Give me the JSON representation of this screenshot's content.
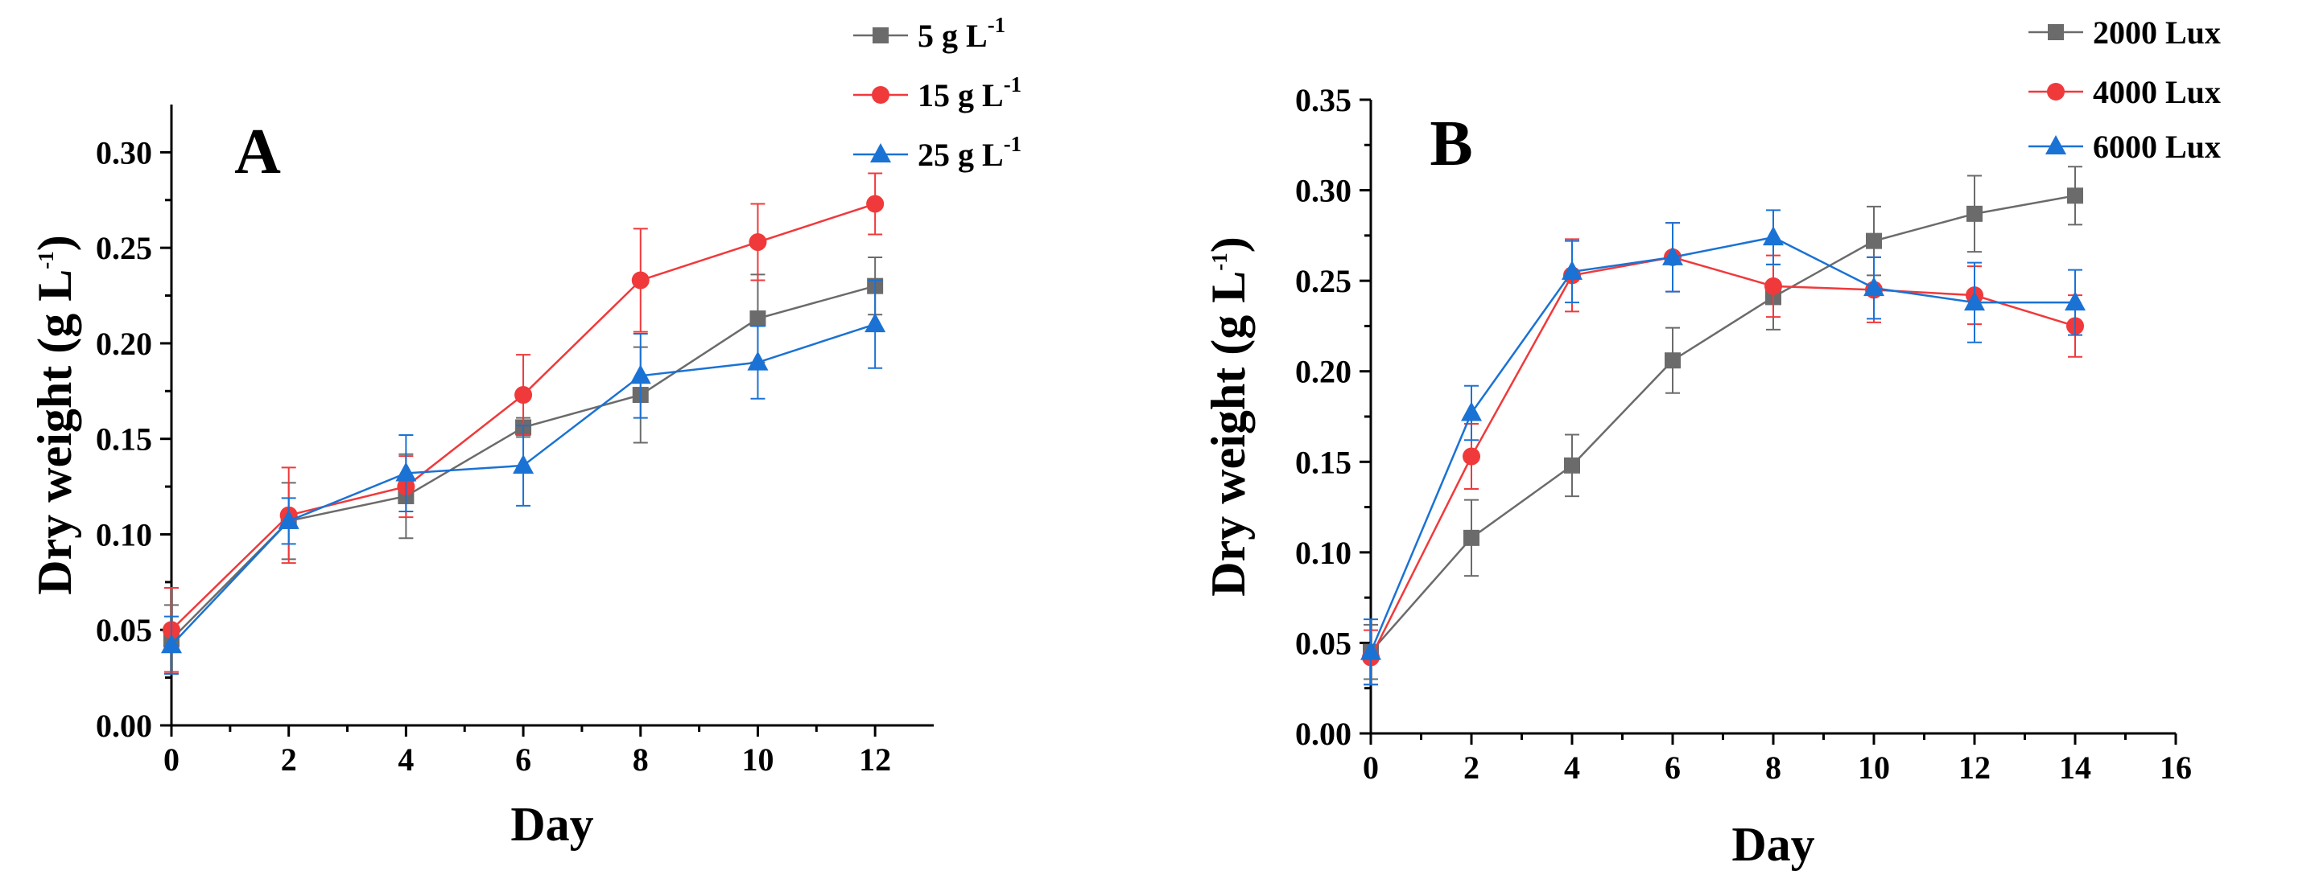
{
  "chart_data": [
    {
      "type": "line",
      "panel_label": "A",
      "xlabel": "Day",
      "ylabel": {
        "base": "Dry weight (g L",
        "sup": "-1",
        "close": ")"
      },
      "xlim": [
        0,
        13
      ],
      "ylim": [
        0,
        0.325
      ],
      "xticks": [
        0,
        2,
        4,
        6,
        8,
        10,
        12
      ],
      "yticks": [
        0.0,
        0.05,
        0.1,
        0.15,
        0.2,
        0.25,
        0.3
      ],
      "x": [
        0,
        2,
        4,
        6,
        8,
        10,
        12
      ],
      "legend_position": "top-right",
      "series": [
        {
          "name": "5 g L",
          "name_sup": "-1",
          "color": "#6b6b6b",
          "marker": "square",
          "values": [
            0.045,
            0.107,
            0.12,
            0.156,
            0.173,
            0.213,
            0.23
          ],
          "errors": [
            0.018,
            0.02,
            0.022,
            0.005,
            0.025,
            0.023,
            0.015
          ]
        },
        {
          "name": "15 g L",
          "name_sup": "-1",
          "color": "#f0393b",
          "marker": "circle",
          "values": [
            0.05,
            0.11,
            0.125,
            0.173,
            0.233,
            0.253,
            0.273
          ],
          "errors": [
            0.022,
            0.025,
            0.016,
            0.021,
            0.027,
            0.02,
            0.016
          ]
        },
        {
          "name": "25 g L",
          "name_sup": "-1",
          "color": "#1a72d4",
          "marker": "triangle",
          "values": [
            0.042,
            0.107,
            0.132,
            0.136,
            0.183,
            0.19,
            0.21
          ],
          "errors": [
            0.015,
            0.012,
            0.02,
            0.021,
            0.022,
            0.019,
            0.023
          ]
        }
      ]
    },
    {
      "type": "line",
      "panel_label": "B",
      "xlabel": "Day",
      "ylabel": {
        "base": "Dry weight (g L",
        "sup": "-1",
        "close": ")"
      },
      "xlim": [
        0,
        16
      ],
      "ylim": [
        0,
        0.35
      ],
      "xticks": [
        0,
        2,
        4,
        6,
        8,
        10,
        12,
        14,
        16
      ],
      "yticks": [
        0.0,
        0.05,
        0.1,
        0.15,
        0.2,
        0.25,
        0.3,
        0.35
      ],
      "x": [
        0,
        2,
        4,
        6,
        8,
        10,
        12,
        14
      ],
      "legend_position": "top-right",
      "series": [
        {
          "name": "2000 Lux",
          "color": "#6b6b6b",
          "marker": "square",
          "values": [
            0.045,
            0.108,
            0.148,
            0.206,
            0.241,
            0.272,
            0.287,
            0.297
          ],
          "errors": [
            0.015,
            0.021,
            0.017,
            0.018,
            0.018,
            0.019,
            0.021,
            0.016
          ]
        },
        {
          "name": "4000 Lux",
          "color": "#f0393b",
          "marker": "circle",
          "values": [
            0.042,
            0.153,
            0.253,
            0.263,
            0.247,
            0.245,
            0.242,
            0.225
          ],
          "errors": [
            0.015,
            0.018,
            0.02,
            0.019,
            0.017,
            0.018,
            0.016,
            0.017
          ]
        },
        {
          "name": "6000 Lux",
          "color": "#1a72d4",
          "marker": "triangle",
          "values": [
            0.045,
            0.177,
            0.255,
            0.263,
            0.274,
            0.246,
            0.238,
            0.238
          ],
          "errors": [
            0.018,
            0.015,
            0.017,
            0.019,
            0.015,
            0.017,
            0.022,
            0.018
          ]
        }
      ]
    }
  ]
}
